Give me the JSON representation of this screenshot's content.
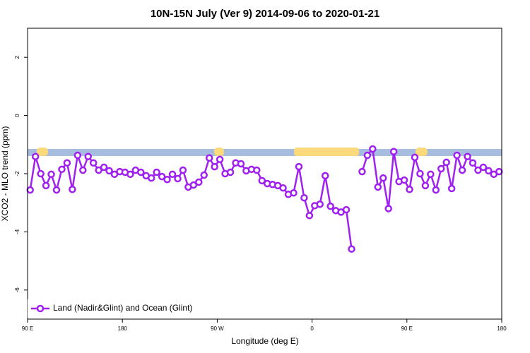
{
  "chart_data": {
    "type": "line",
    "title": "10N-15N July (Ver 9)   2014-09-06 to 2020-01-21",
    "x_label": "Longitude (deg E)",
    "y_label": "XCO2 - MLO trend (ppm)",
    "xlim": [
      90,
      540
    ],
    "xticks": [
      {
        "value": 90,
        "label": "90 E"
      },
      180,
      {
        "value": 270,
        "label": "90 W"
      },
      {
        "value": 360,
        "label": "0"
      },
      {
        "value": 450,
        "label": "90 E"
      },
      {
        "value": 540,
        "label": "180"
      }
    ],
    "ylim": [
      -7,
      3
    ],
    "yticks": [
      -6,
      -4,
      -2,
      0,
      2
    ],
    "legend": "bottom-left",
    "x": [
      92.5,
      97.5,
      102.5,
      107.5,
      112.5,
      117.5,
      122.5,
      127.5,
      132.5,
      137.5,
      142.5,
      147.5,
      152.5,
      157.5,
      162.5,
      167.5,
      172.5,
      177.5,
      182.5,
      187.5,
      192.5,
      197.5,
      202.5,
      207.5,
      212.5,
      217.5,
      222.5,
      227.5,
      232.5,
      237.5,
      242.5,
      247.5,
      252.5,
      257.5,
      262.5,
      267.5,
      272.5,
      277.5,
      282.5,
      287.5,
      292.5,
      297.5,
      302.5,
      307.5,
      312.5,
      317.5,
      322.5,
      327.5,
      332.5,
      337.5,
      342.5,
      347.5,
      352.5,
      357.5,
      362.5,
      367.5,
      372.5,
      377.5,
      382.5,
      387.5,
      392.5,
      397.5,
      402.5,
      407.5,
      412.5,
      417.5,
      422.5,
      427.5,
      432.5,
      437.5,
      442.5,
      447.5,
      452.5,
      457.5,
      462.5,
      467.5,
      472.5,
      477.5,
      482.5,
      487.5,
      492.5,
      497.5,
      502.5,
      507.5,
      512.5,
      517.5,
      522.5,
      527.5,
      532.5,
      537.5
    ],
    "series": [
      {
        "name": "Land (Nadir&Glint) and Ocean (Glint)",
        "color": "#a020f0",
        "values": [
          -2.56,
          -1.41,
          -2.0,
          -2.41,
          -2.02,
          -2.56,
          -1.85,
          -1.63,
          -2.54,
          -1.37,
          -1.88,
          -1.41,
          -1.63,
          -1.88,
          -1.78,
          -1.9,
          -2.02,
          -1.93,
          -1.95,
          -2.02,
          -1.88,
          -1.95,
          -2.07,
          -2.15,
          -1.95,
          -2.1,
          -2.2,
          -2.02,
          -2.17,
          -1.88,
          -2.46,
          -2.39,
          -2.29,
          -2.05,
          -1.46,
          -1.76,
          -1.51,
          -2.0,
          -1.95,
          -1.63,
          -1.66,
          -1.9,
          -1.85,
          -1.88,
          -2.24,
          -2.34,
          -2.37,
          -2.41,
          -2.49,
          -2.71,
          -2.66,
          -1.76,
          -2.83,
          -3.44,
          -3.1,
          -3.05,
          -2.07,
          -3.12,
          -3.27,
          -3.32,
          -3.24,
          -4.59,
          null,
          -1.93,
          -1.37,
          -1.15,
          -2.46,
          -2.15,
          -3.2,
          -1.24,
          -2.27,
          -2.22,
          -2.54,
          -1.44,
          -2.0,
          -2.41,
          -2.02,
          -2.56,
          -1.83,
          -1.61,
          -2.51,
          -1.37,
          -1.88,
          -1.41,
          -1.63,
          -1.88,
          -1.78,
          -1.9,
          -2.02,
          -1.93
        ]
      }
    ]
  }
}
